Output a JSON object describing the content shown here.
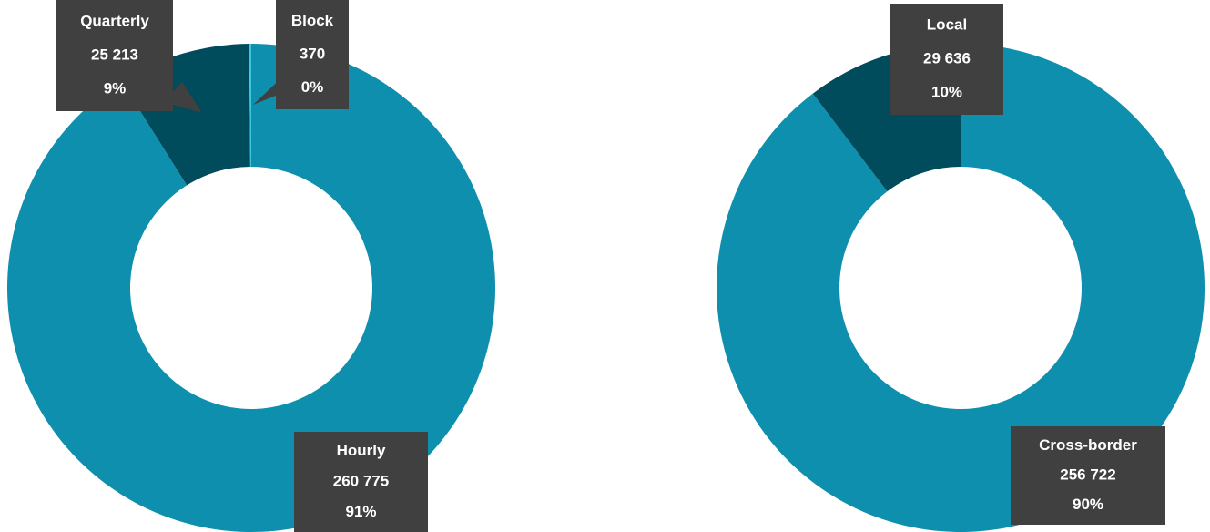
{
  "chart_data": [
    {
      "type": "donut",
      "categories": [
        "Hourly",
        "Quarterly",
        "Block"
      ],
      "values": [
        260775,
        25213,
        370
      ],
      "value_labels": [
        "260 775",
        "25 213",
        "370"
      ],
      "percentages": [
        91,
        9,
        0
      ],
      "percentage_labels": [
        "91%",
        "9%",
        "0%"
      ],
      "colors": [
        "#0d8fad",
        "#004b5c",
        "#3cc6e0"
      ]
    },
    {
      "type": "donut",
      "categories": [
        "Cross-border",
        "Local"
      ],
      "values": [
        256722,
        29636
      ],
      "value_labels": [
        "256 722",
        "29 636"
      ],
      "percentages": [
        90,
        10
      ],
      "percentage_labels": [
        "90%",
        "10%"
      ],
      "colors": [
        "#0d8fad",
        "#004b5c"
      ]
    }
  ]
}
